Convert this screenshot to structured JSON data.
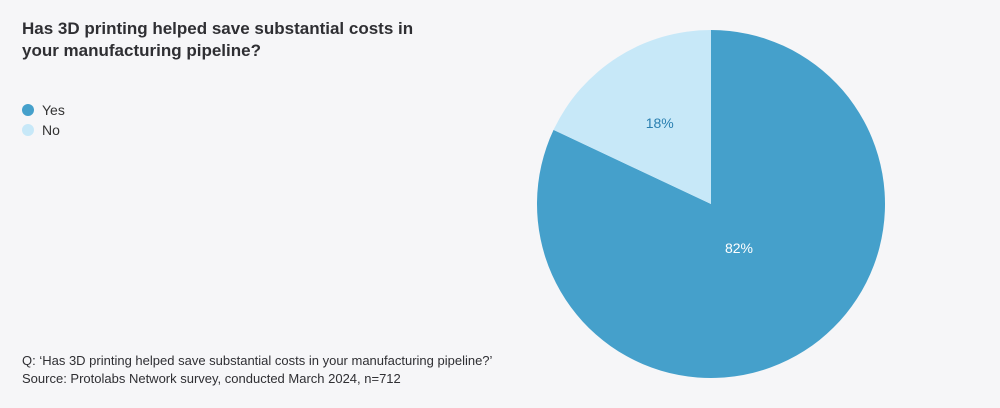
{
  "chart_data": {
    "type": "pie",
    "title": "Has 3D printing helped save substantial costs in your manufacturing pipeline?",
    "categories": [
      "Yes",
      "No"
    ],
    "values": [
      82,
      18
    ],
    "labels": [
      "82%",
      "18%"
    ],
    "colors": [
      "#45a0cb",
      "#c7e8f8"
    ],
    "label_colors": [
      "#ffffff",
      "#2a7fb0"
    ],
    "legend_position": "top-left"
  },
  "legend": {
    "items": [
      {
        "label": "Yes",
        "color": "#45a0cb"
      },
      {
        "label": "No",
        "color": "#c7e8f8"
      }
    ]
  },
  "footnote": {
    "question": "Q: ‘Has 3D printing helped save substantial costs in your manufacturing pipeline?’",
    "source": "Source: Protolabs Network survey, conducted March 2024, n=712"
  }
}
